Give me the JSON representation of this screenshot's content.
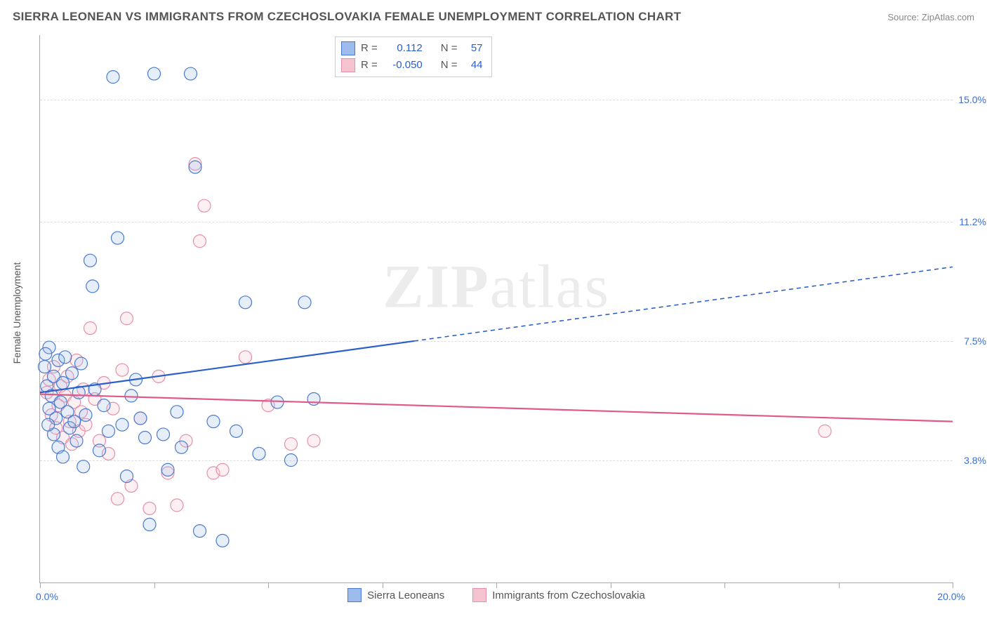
{
  "title": "SIERRA LEONEAN VS IMMIGRANTS FROM CZECHOSLOVAKIA FEMALE UNEMPLOYMENT CORRELATION CHART",
  "source": "Source: ZipAtlas.com",
  "y_axis_title": "Female Unemployment",
  "watermark_bold": "ZIP",
  "watermark_rest": "atlas",
  "chart": {
    "type": "scatter",
    "xlim": [
      0,
      20
    ],
    "ylim": [
      0,
      17
    ],
    "x_ticks": [
      0,
      2.5,
      5,
      7.5,
      10,
      12.5,
      15,
      17.5,
      20
    ],
    "y_grid": [
      3.8,
      7.5,
      11.2,
      15.0
    ],
    "y_tick_labels": [
      "3.8%",
      "7.5%",
      "11.2%",
      "15.0%"
    ],
    "x_start_label": "0.0%",
    "x_end_label": "20.0%",
    "background_color": "#ffffff",
    "grid_color": "#dddddd",
    "axis_color": "#aaaaaa",
    "marker_radius": 9,
    "marker_fill_opacity": 0.25,
    "marker_stroke_width": 1.2,
    "line_width": 2.2,
    "dash_pattern": "6,5",
    "series": [
      {
        "name": "Sierra Leoneans",
        "color_stroke": "#4a7bd0",
        "color_fill": "#9dbced",
        "line_color": "#2b5fc9",
        "R": "0.112",
        "N": "57",
        "trend": {
          "y_at_x0": 5.9,
          "y_at_x20": 9.8,
          "solid_until_x": 8.2
        },
        "points": [
          [
            0.1,
            6.7
          ],
          [
            0.15,
            6.1
          ],
          [
            0.2,
            5.4
          ],
          [
            0.2,
            7.3
          ],
          [
            0.25,
            5.8
          ],
          [
            0.3,
            6.4
          ],
          [
            0.3,
            4.6
          ],
          [
            0.35,
            5.1
          ],
          [
            0.4,
            6.9
          ],
          [
            0.4,
            4.2
          ],
          [
            0.45,
            5.6
          ],
          [
            0.5,
            6.2
          ],
          [
            0.5,
            3.9
          ],
          [
            0.55,
            7.0
          ],
          [
            0.6,
            5.3
          ],
          [
            0.65,
            4.8
          ],
          [
            0.7,
            6.5
          ],
          [
            0.75,
            5.0
          ],
          [
            0.8,
            4.4
          ],
          [
            0.85,
            5.9
          ],
          [
            0.9,
            6.8
          ],
          [
            0.95,
            3.6
          ],
          [
            1.0,
            5.2
          ],
          [
            1.1,
            10.0
          ],
          [
            1.2,
            6.0
          ],
          [
            1.3,
            4.1
          ],
          [
            1.4,
            5.5
          ],
          [
            1.5,
            4.7
          ],
          [
            1.6,
            15.7
          ],
          [
            1.7,
            10.7
          ],
          [
            1.8,
            4.9
          ],
          [
            1.9,
            3.3
          ],
          [
            2.0,
            5.8
          ],
          [
            2.1,
            6.3
          ],
          [
            2.2,
            5.1
          ],
          [
            2.3,
            4.5
          ],
          [
            2.5,
            15.8
          ],
          [
            2.7,
            4.6
          ],
          [
            2.8,
            3.5
          ],
          [
            3.0,
            5.3
          ],
          [
            3.1,
            4.2
          ],
          [
            3.3,
            15.8
          ],
          [
            3.4,
            12.9
          ],
          [
            3.5,
            1.6
          ],
          [
            3.8,
            5.0
          ],
          [
            4.0,
            1.3
          ],
          [
            4.3,
            4.7
          ],
          [
            4.5,
            8.7
          ],
          [
            4.8,
            4.0
          ],
          [
            5.2,
            5.6
          ],
          [
            5.5,
            3.8
          ],
          [
            5.8,
            8.7
          ],
          [
            6.0,
            5.7
          ],
          [
            2.4,
            1.8
          ],
          [
            1.15,
            9.2
          ],
          [
            0.12,
            7.1
          ],
          [
            0.18,
            4.9
          ]
        ]
      },
      {
        "name": "Immigrants from Czechoslovakia",
        "color_stroke": "#e68fa8",
        "color_fill": "#f6c3d1",
        "line_color": "#e05a85",
        "R": "-0.050",
        "N": "44",
        "trend": {
          "y_at_x0": 5.85,
          "y_at_x20": 5.0,
          "solid_until_x": 20
        },
        "points": [
          [
            0.15,
            5.9
          ],
          [
            0.2,
            6.3
          ],
          [
            0.25,
            5.2
          ],
          [
            0.3,
            6.7
          ],
          [
            0.35,
            4.8
          ],
          [
            0.4,
            5.5
          ],
          [
            0.45,
            6.1
          ],
          [
            0.5,
            4.5
          ],
          [
            0.55,
            5.8
          ],
          [
            0.6,
            6.4
          ],
          [
            0.65,
            5.0
          ],
          [
            0.7,
            4.3
          ],
          [
            0.75,
            5.6
          ],
          [
            0.8,
            6.9
          ],
          [
            0.85,
            4.7
          ],
          [
            0.9,
            5.3
          ],
          [
            0.95,
            6.0
          ],
          [
            1.0,
            4.9
          ],
          [
            1.1,
            7.9
          ],
          [
            1.2,
            5.7
          ],
          [
            1.3,
            4.4
          ],
          [
            1.4,
            6.2
          ],
          [
            1.5,
            4.0
          ],
          [
            1.6,
            5.4
          ],
          [
            1.7,
            2.6
          ],
          [
            1.8,
            6.6
          ],
          [
            1.9,
            8.2
          ],
          [
            2.0,
            3.0
          ],
          [
            2.2,
            5.1
          ],
          [
            2.4,
            2.3
          ],
          [
            2.6,
            6.4
          ],
          [
            2.8,
            3.4
          ],
          [
            3.0,
            2.4
          ],
          [
            3.2,
            4.4
          ],
          [
            3.4,
            13.0
          ],
          [
            3.5,
            10.6
          ],
          [
            3.6,
            11.7
          ],
          [
            3.8,
            3.4
          ],
          [
            4.0,
            3.5
          ],
          [
            4.5,
            7.0
          ],
          [
            5.0,
            5.5
          ],
          [
            5.5,
            4.3
          ],
          [
            6.0,
            4.4
          ],
          [
            17.2,
            4.7
          ]
        ]
      }
    ]
  },
  "stats_labels": {
    "R": "R =",
    "N": "N ="
  },
  "legend": {
    "series1": "Sierra Leoneans",
    "series2": "Immigrants from Czechoslovakia"
  }
}
